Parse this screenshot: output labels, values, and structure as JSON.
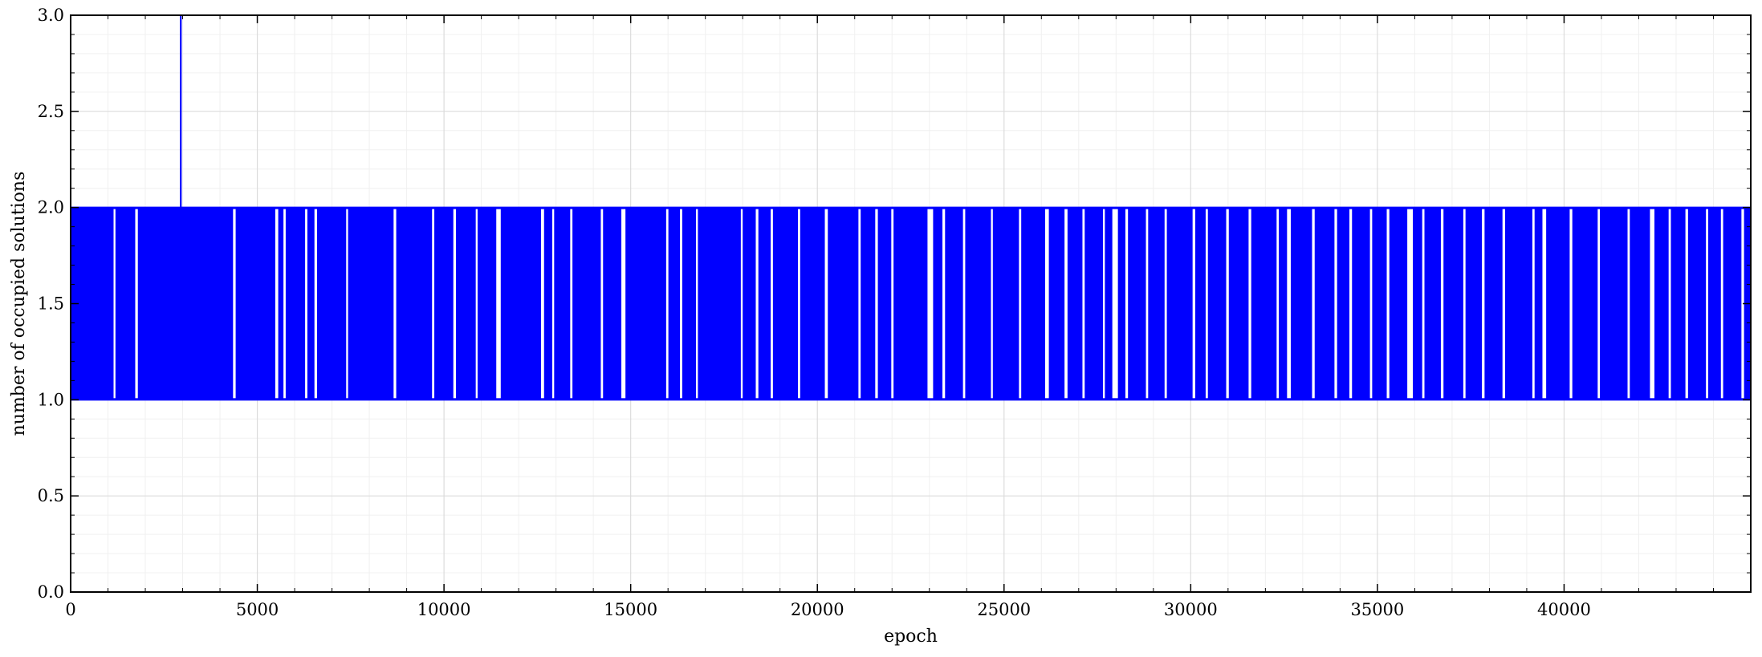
{
  "chart_data": {
    "type": "line",
    "title": "",
    "xlabel": "epoch",
    "ylabel": "number of occupied solutions",
    "xlim": [
      0,
      45000
    ],
    "ylim": [
      0.0,
      3.0
    ],
    "x_ticks": [
      0,
      5000,
      10000,
      15000,
      20000,
      25000,
      30000,
      35000,
      40000
    ],
    "x_tick_labels": [
      "0",
      "5000",
      "10000",
      "15000",
      "20000",
      "25000",
      "30000",
      "35000",
      "40000"
    ],
    "y_ticks": [
      0.0,
      0.5,
      1.0,
      1.5,
      2.0,
      2.5,
      3.0
    ],
    "y_tick_labels": [
      "0.0",
      "0.5",
      "1.0",
      "1.5",
      "2.0",
      "2.5",
      "3.0"
    ],
    "grid": true,
    "minor_grid": true,
    "legend": "none",
    "series": [
      {
        "color": "#0000ff",
        "description_values": "oscillates rapidly between 1 and 2 over all epochs",
        "low_value": 1,
        "high_value": 2,
        "spike": {
          "x": 2950,
          "y": 3.0
        },
        "constant_1_intervals": [
          [
            1150,
            1200
          ],
          [
            1730,
            1800
          ],
          [
            4350,
            4420
          ],
          [
            5480,
            5560
          ],
          [
            5700,
            5760
          ],
          [
            6280,
            6340
          ],
          [
            6530,
            6600
          ],
          [
            7380,
            7430
          ],
          [
            8650,
            8720
          ],
          [
            9680,
            9740
          ],
          [
            10250,
            10320
          ],
          [
            10850,
            10900
          ],
          [
            11400,
            11520
          ],
          [
            12600,
            12680
          ],
          [
            12900,
            12950
          ],
          [
            13380,
            13440
          ],
          [
            14200,
            14260
          ],
          [
            14750,
            14860
          ],
          [
            15950,
            16010
          ],
          [
            16320,
            16380
          ],
          [
            16750,
            16800
          ],
          [
            17950,
            18000
          ],
          [
            18350,
            18420
          ],
          [
            18750,
            18810
          ],
          [
            19480,
            19540
          ],
          [
            20200,
            20280
          ],
          [
            21100,
            21160
          ],
          [
            21550,
            21620
          ],
          [
            21980,
            22040
          ],
          [
            22950,
            23100
          ],
          [
            23350,
            23420
          ],
          [
            23900,
            23960
          ],
          [
            24650,
            24700
          ],
          [
            25400,
            25460
          ],
          [
            26100,
            26200
          ],
          [
            26620,
            26700
          ],
          [
            27100,
            27160
          ],
          [
            27650,
            27700
          ],
          [
            27900,
            28050
          ],
          [
            28250,
            28320
          ],
          [
            28800,
            28860
          ],
          [
            29300,
            29360
          ],
          [
            30050,
            30120
          ],
          [
            30400,
            30460
          ],
          [
            30950,
            31020
          ],
          [
            31550,
            31620
          ],
          [
            32300,
            32360
          ],
          [
            32580,
            32680
          ],
          [
            33250,
            33320
          ],
          [
            33850,
            33920
          ],
          [
            34250,
            34320
          ],
          [
            34800,
            34860
          ],
          [
            35250,
            35320
          ],
          [
            35800,
            35950
          ],
          [
            36200,
            36260
          ],
          [
            36700,
            36770
          ],
          [
            37300,
            37360
          ],
          [
            37800,
            37870
          ],
          [
            38350,
            38420
          ],
          [
            39150,
            39210
          ],
          [
            39420,
            39520
          ],
          [
            40150,
            40220
          ],
          [
            40900,
            40960
          ],
          [
            41700,
            41760
          ],
          [
            42300,
            42420
          ],
          [
            42800,
            42860
          ],
          [
            43250,
            43320
          ],
          [
            43800,
            43860
          ],
          [
            44200,
            44260
          ],
          [
            44750,
            44820
          ]
        ]
      }
    ]
  }
}
